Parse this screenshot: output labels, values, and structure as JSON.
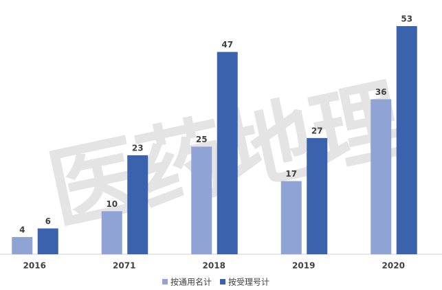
{
  "chart_data": {
    "type": "bar",
    "watermark": "医药地理",
    "categories": [
      "2016",
      "2071",
      "2018",
      "2019",
      "2020"
    ],
    "series": [
      {
        "name": "按通用名计",
        "color": "#8fa3d4",
        "values": [
          4,
          10,
          25,
          17,
          36
        ]
      },
      {
        "name": "按受理号计",
        "color": "#3b62ad",
        "values": [
          6,
          23,
          47,
          27,
          53
        ]
      }
    ],
    "legend": "bottom"
  }
}
